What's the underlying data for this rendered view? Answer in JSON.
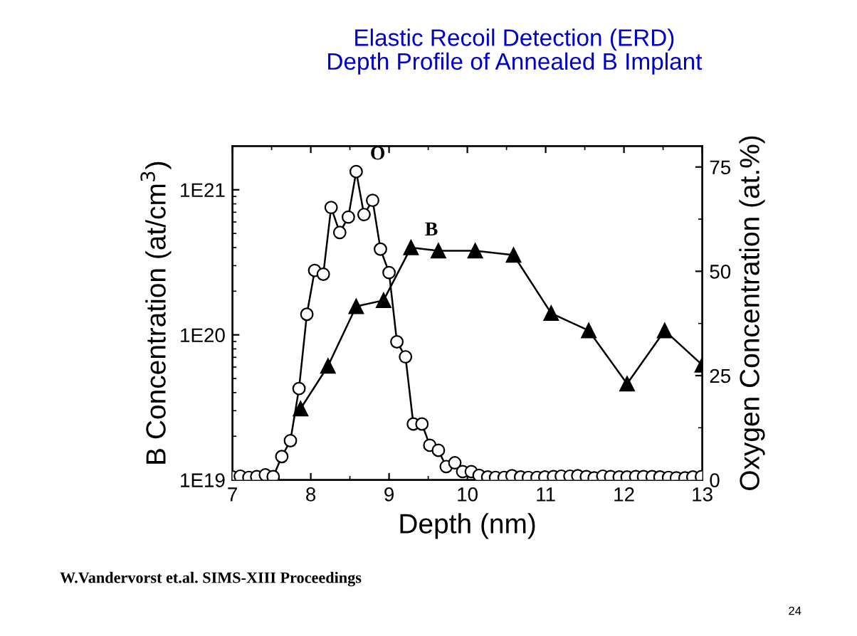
{
  "chart_data": {
    "type": "line",
    "title": "Elastic Recoil Detection (ERD)\nDepth Profile of Annealed B Implant",
    "xlabel": "Depth (nm)",
    "ylabel": "B Concentration (at/cm$^{3}$)",
    "y2label": "Oxygen Concentration (at.%)",
    "log": "y",
    "xlim": [
      7,
      13
    ],
    "xticks": [
      7,
      8,
      9,
      10,
      11,
      12,
      13
    ],
    "ylim": [
      1e+19,
      2e+21
    ],
    "yticks": [
      {
        "value": 1e+19,
        "label": "1E19"
      },
      {
        "value": 1e+20,
        "label": "1E20"
      },
      {
        "value": 1e+21,
        "label": "1E21"
      }
    ],
    "y2lim": [
      0,
      80
    ],
    "y2ticks": [
      0,
      25,
      50,
      75
    ],
    "grid": false,
    "line_style": "solid",
    "series": [
      {
        "name": "O",
        "axis": "y2",
        "color": "#000000",
        "marker": "circle",
        "x": [
          7.0,
          7.1,
          7.21,
          7.31,
          7.42,
          7.52,
          7.63,
          7.74,
          7.85,
          7.95,
          8.05,
          8.16,
          8.26,
          8.37,
          8.48,
          8.58,
          8.68,
          8.79,
          8.89,
          9.0,
          9.1,
          9.21,
          9.31,
          9.42,
          9.52,
          9.63,
          9.73,
          9.84,
          9.94,
          10.05,
          10.15,
          10.26,
          10.36,
          10.47,
          10.57,
          10.68,
          10.78,
          10.89,
          10.99,
          11.1,
          11.2,
          11.31,
          11.41,
          11.52,
          11.62,
          11.73,
          11.83,
          11.94,
          12.04,
          12.15,
          12.25,
          12.36,
          12.46,
          12.57,
          12.67,
          12.78,
          12.88,
          12.99
        ],
        "values": [
          0.7,
          0.9,
          0.6,
          0.8,
          1.2,
          0.8,
          5.6,
          9.4,
          21.9,
          39.7,
          50.2,
          49.3,
          65.3,
          59.3,
          63.0,
          73.9,
          63.6,
          67.0,
          55.3,
          49.7,
          33.1,
          29.5,
          13.4,
          13.4,
          8.3,
          7.1,
          3.2,
          4.1,
          2.0,
          2.0,
          1.1,
          0.7,
          0.6,
          0.6,
          1.0,
          0.7,
          0.6,
          0.6,
          0.7,
          0.8,
          0.9,
          0.9,
          1.0,
          0.8,
          0.5,
          0.9,
          0.8,
          0.7,
          0.7,
          0.8,
          0.8,
          0.8,
          0.7,
          0.6,
          0.5,
          0.5,
          0.7,
          0.8
        ]
      },
      {
        "name": "B",
        "color": "#000000",
        "marker": "triangle",
        "x": [
          7.87,
          8.22,
          8.58,
          8.93,
          9.28,
          9.63,
          10.1,
          10.59,
          11.07,
          11.55,
          12.04,
          12.52,
          13.0
        ],
        "values": [
          3.1e+19,
          6.1e+19,
          1.57e+20,
          1.73e+20,
          4e+20,
          3.8e+20,
          3.8e+20,
          3.55e+20,
          1.41e+20,
          1.07e+20,
          4.6e+19,
          1.07e+20,
          6.2e+19
        ]
      }
    ],
    "annotations": [
      "W.Vandervorst et.al. SIMS-XIII Proceedings",
      "24"
    ]
  }
}
